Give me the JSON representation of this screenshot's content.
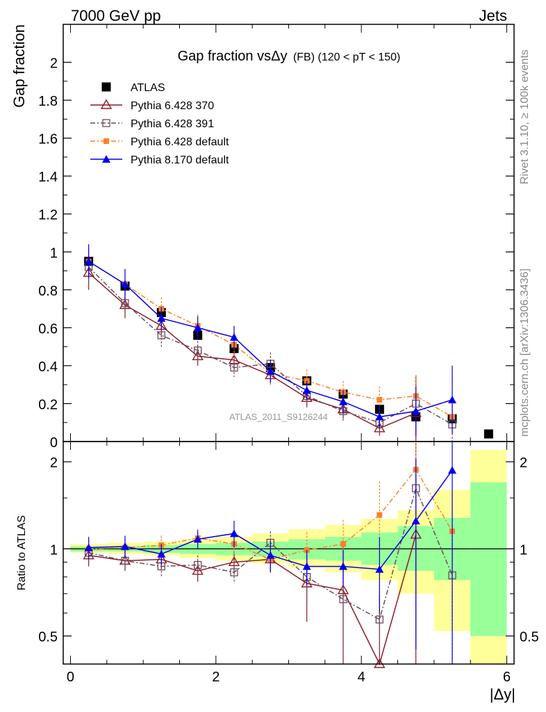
{
  "header": {
    "left": "7000 GeV pp",
    "right": "Jets"
  },
  "side": {
    "rivet": "Rivet 3.1.10, ≥ 100k events",
    "mcplots": "mcplots.cern.ch [arXiv:1306.3436]"
  },
  "chart_data": [
    {
      "type": "scatter",
      "title": "Gap fraction vsΔy",
      "title_small": "(FB) (120 < pT < 150)",
      "ylabel": "Gap fraction",
      "watermark": "ATLAS_2011_S9126244",
      "xlim": [
        -0.1,
        6.1
      ],
      "ylim": [
        0,
        2.2
      ],
      "yticks": [
        "2",
        "1.8",
        "1.6",
        "1.4",
        "1.2",
        "1",
        "0.8",
        "0.6",
        "0.4",
        "0.2",
        "0"
      ],
      "legend_position": "top-left",
      "x": [
        0.25,
        0.75,
        1.25,
        1.75,
        2.25,
        2.75,
        3.25,
        3.75,
        4.25,
        4.75,
        5.25,
        5.75
      ],
      "series": [
        {
          "name": "ATLAS",
          "color": "#000000",
          "marker": "square",
          "line": "none",
          "values": [
            0.95,
            0.82,
            0.68,
            0.56,
            0.49,
            0.39,
            0.32,
            0.25,
            0.17,
            0.13,
            0.12,
            0.04
          ]
        },
        {
          "name": "Pythia 6.428 370",
          "color": "#8b1a2a",
          "marker": "open-triangle",
          "line": "solid",
          "values": [
            0.89,
            0.72,
            0.61,
            0.45,
            0.43,
            0.35,
            0.23,
            0.17,
            0.07,
            0.15,
            null,
            null
          ],
          "err": [
            0.09,
            0.07,
            0.06,
            0.05,
            0.05,
            0.05,
            0.05,
            0.05,
            0.04,
            0.2,
            null,
            null
          ]
        },
        {
          "name": "Pythia 6.428 391",
          "color": "#6b4a5a",
          "marker": "open-square",
          "line": "dashdot",
          "values": [
            0.92,
            0.73,
            0.56,
            0.48,
            0.39,
            0.41,
            0.24,
            0.16,
            0.1,
            0.2,
            0.09,
            null
          ],
          "err": [
            0.09,
            0.07,
            0.06,
            0.05,
            0.05,
            0.06,
            0.05,
            0.05,
            0.05,
            0.15,
            0.1,
            null
          ]
        },
        {
          "name": "Pythia 6.428 default",
          "color": "#ff7f27",
          "marker": "filled-square",
          "line": "dashdot",
          "values": [
            0.95,
            0.83,
            0.7,
            0.61,
            0.51,
            0.36,
            0.32,
            0.26,
            0.22,
            0.24,
            0.13,
            null
          ],
          "err": [
            0.09,
            0.07,
            0.06,
            0.06,
            0.06,
            0.06,
            0.06,
            0.06,
            0.07,
            0.11,
            0.1,
            null
          ]
        },
        {
          "name": "Pythia 8.170 default",
          "color": "#0000ee",
          "marker": "filled-triangle",
          "line": "solid",
          "values": [
            0.95,
            0.83,
            0.65,
            0.6,
            0.55,
            0.37,
            0.27,
            0.21,
            0.13,
            0.16,
            0.22,
            null
          ],
          "err": [
            0.09,
            0.08,
            0.06,
            0.06,
            0.06,
            0.06,
            0.05,
            0.06,
            0.06,
            0.13,
            0.18,
            null
          ]
        }
      ]
    },
    {
      "type": "scatter",
      "ylabel": "Ratio to ATLAS",
      "xlabel": "|Δy|",
      "xlim": [
        -0.1,
        6.1
      ],
      "xticks": [
        "0",
        "2",
        "4",
        "6"
      ],
      "ylim": [
        0.4,
        2.35
      ],
      "ylog": true,
      "yticks": [
        "0.5",
        "1",
        "2"
      ],
      "reference_line": 1,
      "band_edges": [
        0,
        0.5,
        1.0,
        1.5,
        2.0,
        2.5,
        3.0,
        3.5,
        4.0,
        4.5,
        5.0,
        5.5,
        6.0
      ],
      "band_inner": [
        [
          0.98,
          1.02
        ],
        [
          0.98,
          1.02
        ],
        [
          0.97,
          1.03
        ],
        [
          0.96,
          1.04
        ],
        [
          0.95,
          1.05
        ],
        [
          0.94,
          1.06
        ],
        [
          0.92,
          1.08
        ],
        [
          0.91,
          1.1
        ],
        [
          0.88,
          1.14
        ],
        [
          0.84,
          1.2
        ],
        [
          0.78,
          1.28
        ],
        [
          0.5,
          1.7
        ]
      ],
      "band_outer": [
        [
          0.97,
          1.04
        ],
        [
          0.96,
          1.05
        ],
        [
          0.95,
          1.06
        ],
        [
          0.93,
          1.08
        ],
        [
          0.91,
          1.1
        ],
        [
          0.89,
          1.13
        ],
        [
          0.86,
          1.17
        ],
        [
          0.83,
          1.21
        ],
        [
          0.78,
          1.27
        ],
        [
          0.7,
          1.36
        ],
        [
          0.52,
          1.6
        ],
        [
          0.35,
          2.2
        ]
      ],
      "x": [
        0.25,
        0.75,
        1.25,
        1.75,
        2.25,
        2.75,
        3.25,
        3.75,
        4.25,
        4.75,
        5.25
      ],
      "series": [
        {
          "name": "Pythia 6.428 370",
          "color": "#8b1a2a",
          "values": [
            0.95,
            0.91,
            0.92,
            0.84,
            0.9,
            0.92,
            0.76,
            0.72,
            0.39,
            1.12,
            null
          ],
          "err": [
            0.08,
            0.07,
            0.07,
            0.07,
            0.08,
            0.08,
            0.2,
            0.35,
            0.3,
            0.8,
            null
          ]
        },
        {
          "name": "Pythia 6.428 391",
          "color": "#6b4a5a",
          "values": [
            0.97,
            0.91,
            0.87,
            0.88,
            0.83,
            1.05,
            0.8,
            0.67,
            0.57,
            1.62,
            0.81
          ],
          "err": [
            0.07,
            0.07,
            0.07,
            0.07,
            0.07,
            0.1,
            0.15,
            0.22,
            0.25,
            0.7,
            0.4
          ]
        },
        {
          "name": "Pythia 6.428 default",
          "color": "#ff7f27",
          "values": [
            1.0,
            1.01,
            1.03,
            1.09,
            1.04,
            0.92,
            0.99,
            1.04,
            1.31,
            1.88,
            1.15
          ],
          "err": [
            0.07,
            0.07,
            0.08,
            0.08,
            0.08,
            0.1,
            0.15,
            0.22,
            0.4,
            0.6,
            0.4
          ]
        },
        {
          "name": "Pythia 8.170 default",
          "color": "#0000ee",
          "values": [
            1.01,
            1.02,
            0.96,
            1.08,
            1.13,
            0.95,
            0.87,
            0.87,
            0.85,
            1.25,
            1.87
          ],
          "err": [
            0.09,
            0.09,
            0.08,
            0.08,
            0.12,
            0.12,
            0.12,
            0.12,
            0.25,
            0.8,
            1.5
          ]
        }
      ]
    }
  ]
}
